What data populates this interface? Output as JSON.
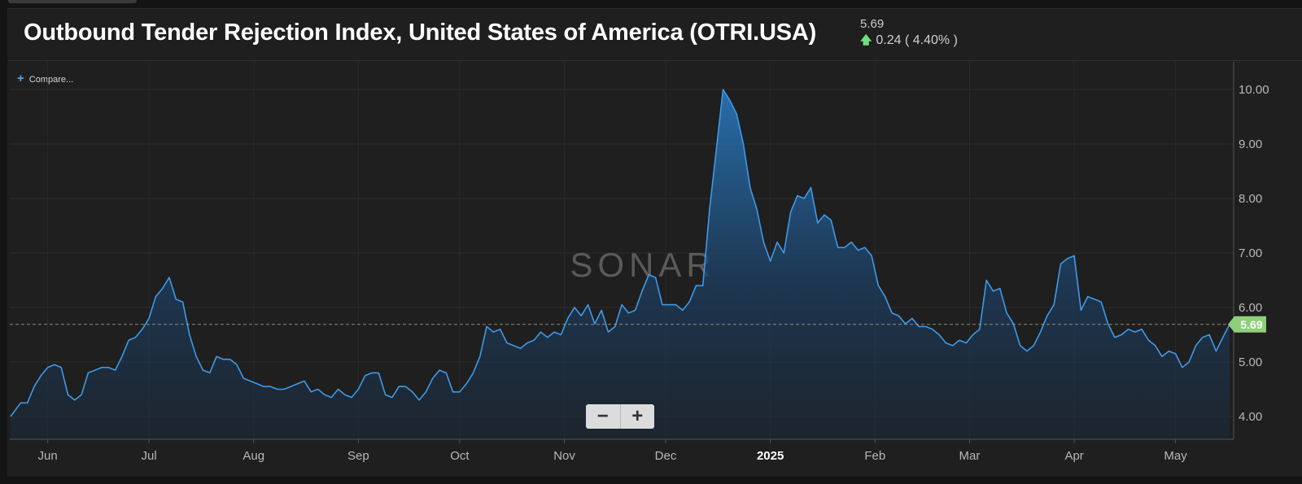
{
  "header": {
    "title": "Outbound Tender Rejection Index, United States of America (OTRI.USA)",
    "current_value": "5.69",
    "change_text": "0.24 ( 4.40% )",
    "change_icon": "up-arrow-icon"
  },
  "toolbar": {
    "compare_label": "Compare...",
    "compare_icon": "plus-icon"
  },
  "zoom": {
    "minus_label": "−",
    "plus_label": "+"
  },
  "watermark": "SONAR",
  "colors": {
    "line": "#3d9ae8",
    "last_value_badge": "#8fcf7a",
    "background": "#1f1f1f"
  },
  "chart_data": {
    "type": "area",
    "title": "Outbound Tender Rejection Index, United States of America (OTRI.USA)",
    "ylim": [
      3.6,
      10.6
    ],
    "y_ticks": [
      "4.00",
      "5.00",
      "6.00",
      "7.00",
      "8.00",
      "9.00",
      "10.00"
    ],
    "x_labels": [
      {
        "label": "Jun",
        "date": "2024-06-01"
      },
      {
        "label": "Jul",
        "date": "2024-07-01"
      },
      {
        "label": "Aug",
        "date": "2024-08-01"
      },
      {
        "label": "Sep",
        "date": "2024-09-01"
      },
      {
        "label": "Oct",
        "date": "2024-10-01"
      },
      {
        "label": "Nov",
        "date": "2024-11-01"
      },
      {
        "label": "Dec",
        "date": "2024-12-01"
      },
      {
        "label": "2025",
        "date": "2025-01-01",
        "bold": true
      },
      {
        "label": "Feb",
        "date": "2025-02-01"
      },
      {
        "label": "Mar",
        "date": "2025-03-01"
      },
      {
        "label": "Apr",
        "date": "2025-04-01"
      },
      {
        "label": "May",
        "date": "2025-05-01"
      }
    ],
    "last_value": "5.69",
    "reference_line": 5.69,
    "grid": true,
    "series": [
      {
        "points": [
          [
            "2024-05-21",
            4.0
          ],
          [
            "2024-05-24",
            4.25
          ],
          [
            "2024-05-26",
            4.25
          ],
          [
            "2024-05-28",
            4.55
          ],
          [
            "2024-05-30",
            4.75
          ],
          [
            "2024-06-01",
            4.9
          ],
          [
            "2024-06-03",
            4.95
          ],
          [
            "2024-06-05",
            4.9
          ],
          [
            "2024-06-07",
            4.4
          ],
          [
            "2024-06-09",
            4.3
          ],
          [
            "2024-06-11",
            4.4
          ],
          [
            "2024-06-13",
            4.8
          ],
          [
            "2024-06-15",
            4.85
          ],
          [
            "2024-06-17",
            4.9
          ],
          [
            "2024-06-19",
            4.9
          ],
          [
            "2024-06-21",
            4.85
          ],
          [
            "2024-06-23",
            5.1
          ],
          [
            "2024-06-25",
            5.4
          ],
          [
            "2024-06-27",
            5.45
          ],
          [
            "2024-06-29",
            5.6
          ],
          [
            "2024-07-01",
            5.8
          ],
          [
            "2024-07-03",
            6.2
          ],
          [
            "2024-07-05",
            6.35
          ],
          [
            "2024-07-07",
            6.55
          ],
          [
            "2024-07-09",
            6.15
          ],
          [
            "2024-07-11",
            6.1
          ],
          [
            "2024-07-13",
            5.5
          ],
          [
            "2024-07-15",
            5.1
          ],
          [
            "2024-07-17",
            4.85
          ],
          [
            "2024-07-19",
            4.8
          ],
          [
            "2024-07-21",
            5.1
          ],
          [
            "2024-07-23",
            5.05
          ],
          [
            "2024-07-25",
            5.05
          ],
          [
            "2024-07-27",
            4.95
          ],
          [
            "2024-07-29",
            4.7
          ],
          [
            "2024-07-31",
            4.65
          ],
          [
            "2024-08-02",
            4.6
          ],
          [
            "2024-08-04",
            4.55
          ],
          [
            "2024-08-06",
            4.55
          ],
          [
            "2024-08-08",
            4.5
          ],
          [
            "2024-08-10",
            4.5
          ],
          [
            "2024-08-12",
            4.55
          ],
          [
            "2024-08-14",
            4.6
          ],
          [
            "2024-08-16",
            4.65
          ],
          [
            "2024-08-18",
            4.45
          ],
          [
            "2024-08-20",
            4.5
          ],
          [
            "2024-08-22",
            4.4
          ],
          [
            "2024-08-24",
            4.35
          ],
          [
            "2024-08-26",
            4.5
          ],
          [
            "2024-08-28",
            4.4
          ],
          [
            "2024-08-30",
            4.35
          ],
          [
            "2024-09-01",
            4.5
          ],
          [
            "2024-09-03",
            4.75
          ],
          [
            "2024-09-05",
            4.8
          ],
          [
            "2024-09-07",
            4.8
          ],
          [
            "2024-09-09",
            4.4
          ],
          [
            "2024-09-11",
            4.35
          ],
          [
            "2024-09-13",
            4.55
          ],
          [
            "2024-09-15",
            4.55
          ],
          [
            "2024-09-17",
            4.45
          ],
          [
            "2024-09-19",
            4.3
          ],
          [
            "2024-09-21",
            4.45
          ],
          [
            "2024-09-23",
            4.7
          ],
          [
            "2024-09-25",
            4.85
          ],
          [
            "2024-09-27",
            4.8
          ],
          [
            "2024-09-29",
            4.45
          ],
          [
            "2024-10-01",
            4.45
          ],
          [
            "2024-10-03",
            4.6
          ],
          [
            "2024-10-05",
            4.8
          ],
          [
            "2024-10-07",
            5.1
          ],
          [
            "2024-10-09",
            5.65
          ],
          [
            "2024-10-11",
            5.55
          ],
          [
            "2024-10-13",
            5.6
          ],
          [
            "2024-10-15",
            5.35
          ],
          [
            "2024-10-17",
            5.3
          ],
          [
            "2024-10-19",
            5.25
          ],
          [
            "2024-10-21",
            5.35
          ],
          [
            "2024-10-23",
            5.4
          ],
          [
            "2024-10-25",
            5.55
          ],
          [
            "2024-10-27",
            5.45
          ],
          [
            "2024-10-29",
            5.55
          ],
          [
            "2024-10-31",
            5.5
          ],
          [
            "2024-11-02",
            5.8
          ],
          [
            "2024-11-04",
            6.0
          ],
          [
            "2024-11-06",
            5.85
          ],
          [
            "2024-11-08",
            6.05
          ],
          [
            "2024-11-10",
            5.7
          ],
          [
            "2024-11-12",
            5.95
          ],
          [
            "2024-11-14",
            5.55
          ],
          [
            "2024-11-16",
            5.65
          ],
          [
            "2024-11-18",
            6.05
          ],
          [
            "2024-11-20",
            5.9
          ],
          [
            "2024-11-22",
            5.95
          ],
          [
            "2024-11-24",
            6.3
          ],
          [
            "2024-11-26",
            6.6
          ],
          [
            "2024-11-28",
            6.55
          ],
          [
            "2024-11-30",
            6.05
          ],
          [
            "2024-12-02",
            6.05
          ],
          [
            "2024-12-04",
            6.05
          ],
          [
            "2024-12-06",
            5.95
          ],
          [
            "2024-12-08",
            6.1
          ],
          [
            "2024-12-10",
            6.4
          ],
          [
            "2024-12-12",
            6.4
          ],
          [
            "2024-12-14",
            7.8
          ],
          [
            "2024-12-16",
            8.9
          ],
          [
            "2024-12-18",
            10.0
          ],
          [
            "2024-12-20",
            9.8
          ],
          [
            "2024-12-22",
            9.55
          ],
          [
            "2024-12-24",
            9.0
          ],
          [
            "2024-12-26",
            8.2
          ],
          [
            "2024-12-28",
            7.8
          ],
          [
            "2024-12-30",
            7.2
          ],
          [
            "2025-01-01",
            6.85
          ],
          [
            "2025-01-03",
            7.2
          ],
          [
            "2025-01-05",
            7.0
          ],
          [
            "2025-01-07",
            7.75
          ],
          [
            "2025-01-09",
            8.05
          ],
          [
            "2025-01-11",
            8.0
          ],
          [
            "2025-01-13",
            8.2
          ],
          [
            "2025-01-15",
            7.55
          ],
          [
            "2025-01-17",
            7.7
          ],
          [
            "2025-01-19",
            7.6
          ],
          [
            "2025-01-21",
            7.1
          ],
          [
            "2025-01-23",
            7.1
          ],
          [
            "2025-01-25",
            7.2
          ],
          [
            "2025-01-27",
            7.05
          ],
          [
            "2025-01-29",
            7.1
          ],
          [
            "2025-01-31",
            6.95
          ],
          [
            "2025-02-02",
            6.4
          ],
          [
            "2025-02-04",
            6.2
          ],
          [
            "2025-02-06",
            5.9
          ],
          [
            "2025-02-08",
            5.85
          ],
          [
            "2025-02-10",
            5.7
          ],
          [
            "2025-02-12",
            5.8
          ],
          [
            "2025-02-14",
            5.65
          ],
          [
            "2025-02-16",
            5.65
          ],
          [
            "2025-02-18",
            5.6
          ],
          [
            "2025-02-20",
            5.5
          ],
          [
            "2025-02-22",
            5.35
          ],
          [
            "2025-02-24",
            5.3
          ],
          [
            "2025-02-26",
            5.4
          ],
          [
            "2025-02-28",
            5.35
          ],
          [
            "2025-03-02",
            5.5
          ],
          [
            "2025-03-04",
            5.6
          ],
          [
            "2025-03-06",
            6.5
          ],
          [
            "2025-03-08",
            6.3
          ],
          [
            "2025-03-10",
            6.35
          ],
          [
            "2025-03-12",
            5.9
          ],
          [
            "2025-03-14",
            5.7
          ],
          [
            "2025-03-16",
            5.3
          ],
          [
            "2025-03-18",
            5.2
          ],
          [
            "2025-03-20",
            5.3
          ],
          [
            "2025-03-22",
            5.55
          ],
          [
            "2025-03-24",
            5.85
          ],
          [
            "2025-03-26",
            6.05
          ],
          [
            "2025-03-28",
            6.8
          ],
          [
            "2025-03-30",
            6.9
          ],
          [
            "2025-04-01",
            6.95
          ],
          [
            "2025-04-03",
            5.95
          ],
          [
            "2025-04-05",
            6.2
          ],
          [
            "2025-04-07",
            6.15
          ],
          [
            "2025-04-09",
            6.1
          ],
          [
            "2025-04-11",
            5.7
          ],
          [
            "2025-04-13",
            5.45
          ],
          [
            "2025-04-15",
            5.5
          ],
          [
            "2025-04-17",
            5.6
          ],
          [
            "2025-04-19",
            5.55
          ],
          [
            "2025-04-21",
            5.6
          ],
          [
            "2025-04-23",
            5.4
          ],
          [
            "2025-04-25",
            5.3
          ],
          [
            "2025-04-27",
            5.1
          ],
          [
            "2025-04-29",
            5.2
          ],
          [
            "2025-05-01",
            5.15
          ],
          [
            "2025-05-03",
            4.9
          ],
          [
            "2025-05-05",
            5.0
          ],
          [
            "2025-05-07",
            5.3
          ],
          [
            "2025-05-09",
            5.45
          ],
          [
            "2025-05-11",
            5.5
          ],
          [
            "2025-05-13",
            5.2
          ],
          [
            "2025-05-15",
            5.45
          ],
          [
            "2025-05-17",
            5.69
          ]
        ]
      }
    ]
  }
}
